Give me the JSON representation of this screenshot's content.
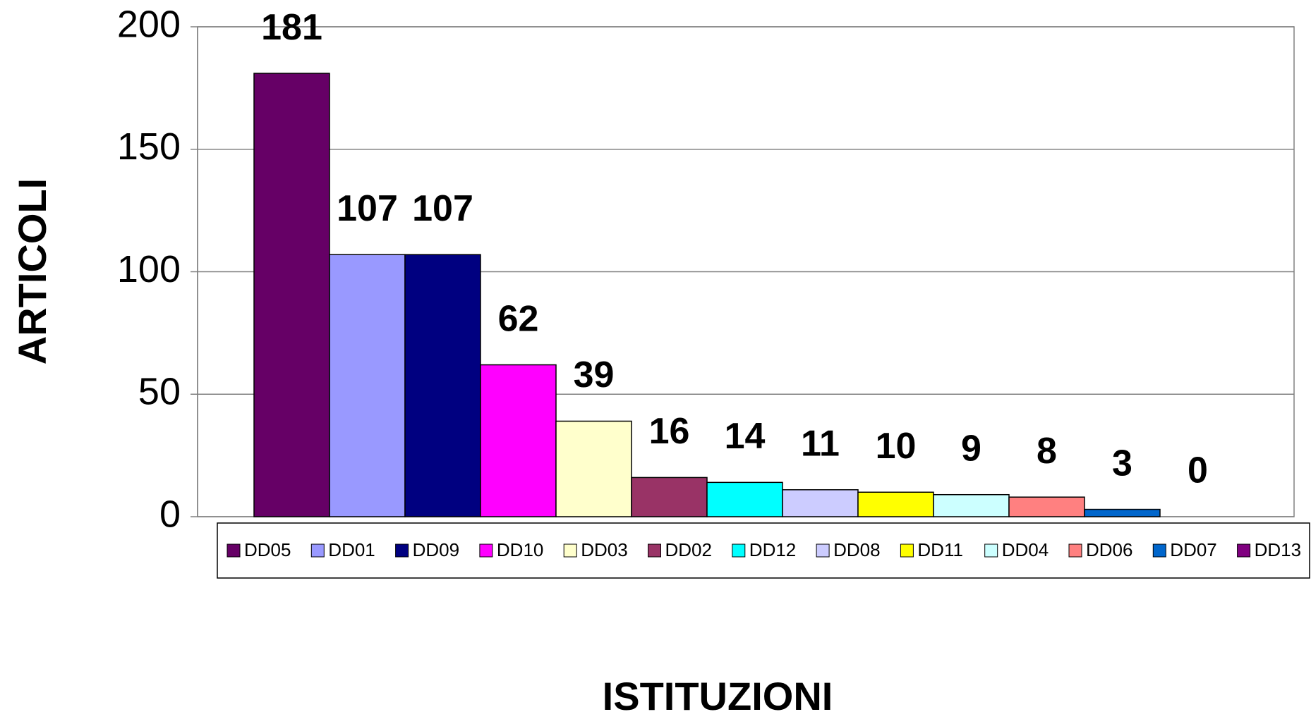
{
  "chart_data": {
    "type": "bar",
    "y_label": "ARTICOLI",
    "x_label": "ISTITUZIONI",
    "categories": [
      "DD05",
      "DD01",
      "DD09",
      "DD10",
      "DD03",
      "DD02",
      "DD12",
      "DD08",
      "DD11",
      "DD04",
      "DD06",
      "DD07",
      "DD13"
    ],
    "values": [
      181,
      107,
      107,
      62,
      39,
      16,
      14,
      11,
      10,
      9,
      8,
      3,
      0
    ],
    "colors": [
      "#660066",
      "#9999ff",
      "#000080",
      "#ff00ff",
      "#ffffcc",
      "#993366",
      "#00ffff",
      "#ccccff",
      "#ffff00",
      "#ccffff",
      "#ff8080",
      "#0066cc",
      "#800080"
    ],
    "ylim": [
      0,
      200
    ],
    "yticks": [
      0,
      50,
      100,
      150,
      200
    ],
    "grid": true,
    "legend": "bottom"
  }
}
